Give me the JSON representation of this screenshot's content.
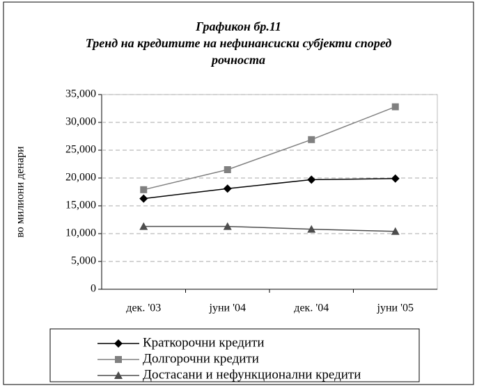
{
  "chart_data": {
    "type": "line",
    "title": "Графикон бр.11",
    "subtitle": "Тренд на кредитите на нефинансиски субјекти според рочноста",
    "y_label": "во милиони денари",
    "categories": [
      "дек. '03",
      "јуни '04",
      "дек. '04",
      "јуни '05"
    ],
    "series": [
      {
        "name": "Краткорочни кредити",
        "color": "#000000",
        "marker": "diamond",
        "values": [
          16300,
          18100,
          19700,
          19900
        ]
      },
      {
        "name": "Долгорочни кредити",
        "color": "#808080",
        "marker": "square",
        "values": [
          17900,
          21500,
          26900,
          32800
        ]
      },
      {
        "name": "Достасани и нефункционални кредити",
        "color": "#4d4d4d",
        "marker": "triangle",
        "values": [
          11300,
          11300,
          10800,
          10400
        ]
      }
    ],
    "ylim": [
      0,
      35000
    ],
    "yticks": [
      0,
      {
        "value": 5000,
        "label": "5,000"
      },
      {
        "value": 10000,
        "label": "10,000"
      },
      {
        "value": 15000,
        "label": "15,000"
      },
      {
        "value": 20000,
        "label": "20,000"
      },
      {
        "value": 25000,
        "label": "25,000"
      },
      {
        "value": 30000,
        "label": "30,000"
      },
      {
        "value": 35000,
        "label": "35,000"
      }
    ],
    "grid": true
  }
}
